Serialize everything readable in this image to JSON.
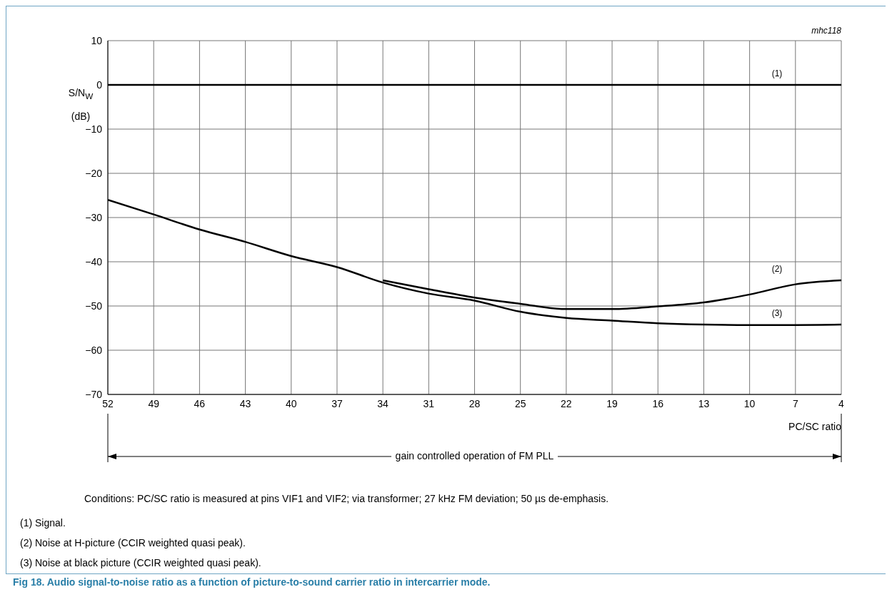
{
  "chart_data": {
    "type": "line",
    "title": "Fig 18. Audio signal-to-noise ratio as a function of picture-to-sound carrier ratio in intercarrier mode.",
    "xlabel": "PC/SC ratio",
    "ylabel": "S/N$_{W}$ (dB)",
    "xlim": [
      52,
      4
    ],
    "xticks": [
      52,
      49,
      46,
      43,
      40,
      37,
      34,
      31,
      28,
      25,
      22,
      19,
      16,
      13,
      10,
      7,
      4
    ],
    "ylim": [
      -70,
      10
    ],
    "yticks": [
      -70,
      -60,
      -50,
      -40,
      -30,
      -20,
      -10,
      0,
      10
    ],
    "grid": true,
    "marker": "none",
    "line_style": "solid",
    "series": [
      {
        "name": "(1)",
        "color": "#000000",
        "x": [
          52,
          4
        ],
        "values": [
          0,
          0
        ]
      },
      {
        "name": "(2)",
        "color": "#000000",
        "x": [
          34,
          31,
          28,
          25,
          22,
          19,
          16,
          13,
          10,
          7,
          4
        ],
        "values": [
          -44.2,
          -46.2,
          -48.1,
          -49.5,
          -50.7,
          -50.7,
          -50.1,
          -49.2,
          -47.4,
          -45.1,
          -44.2
        ]
      },
      {
        "name": "(3)",
        "color": "#000000",
        "x": [
          52,
          49,
          46,
          43,
          40,
          37,
          34,
          31,
          28,
          25,
          22,
          19,
          16,
          13,
          10,
          7,
          4
        ],
        "values": [
          -26.0,
          -29.3,
          -32.7,
          -35.5,
          -38.7,
          -41.2,
          -44.7,
          -47.2,
          -48.8,
          -51.3,
          -52.7,
          -53.3,
          -53.9,
          -54.2,
          -54.3,
          -54.3,
          -54.2
        ]
      }
    ],
    "annotations": [
      "mhc118",
      "gain controlled operation of FM PLL",
      "Conditions: PC/SC ratio is measured at pins VIF1 and VIF2; via transformer; 27 kHz FM deviation; 50 µs de-emphasis.",
      "(1) Signal.",
      "(2) Noise at H-picture (CCIR weighted quasi peak).",
      "(3) Noise at black picture (CCIR weighted quasi peak)."
    ]
  }
}
